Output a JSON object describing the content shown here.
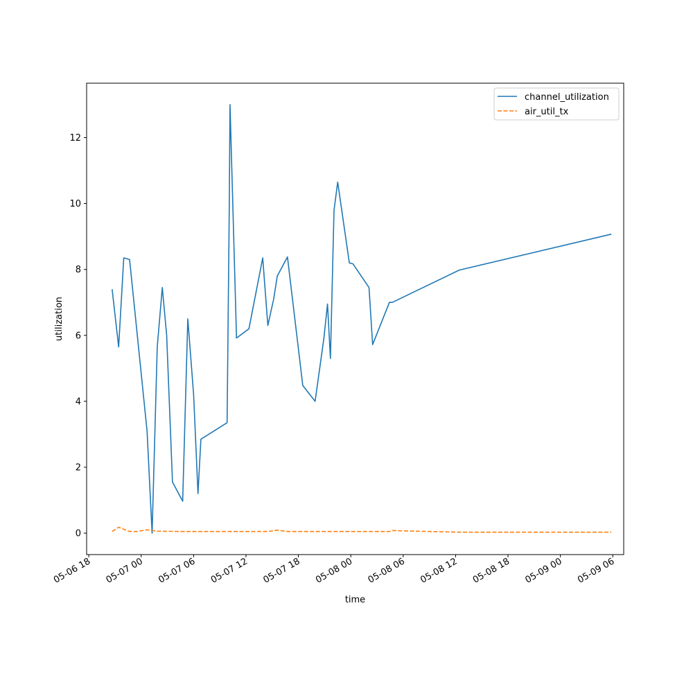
{
  "chart_data": {
    "type": "line",
    "title": "",
    "xlabel": "time",
    "ylabel": "utilization",
    "x_axis": {
      "kind": "datetime",
      "range": [
        "2022-05-06 17:45",
        "2022-05-09 07:15"
      ],
      "ticks": [
        {
          "at": "2022-05-06 18:00",
          "label": "05-06 18"
        },
        {
          "at": "2022-05-07 00:00",
          "label": "05-07 00"
        },
        {
          "at": "2022-05-07 06:00",
          "label": "05-07 06"
        },
        {
          "at": "2022-05-07 12:00",
          "label": "05-07 12"
        },
        {
          "at": "2022-05-07 18:00",
          "label": "05-07 18"
        },
        {
          "at": "2022-05-08 00:00",
          "label": "05-08 00"
        },
        {
          "at": "2022-05-08 06:00",
          "label": "05-08 06"
        },
        {
          "at": "2022-05-08 12:00",
          "label": "05-08 12"
        },
        {
          "at": "2022-05-08 18:00",
          "label": "05-08 18"
        },
        {
          "at": "2022-05-09 00:00",
          "label": "05-09 00"
        },
        {
          "at": "2022-05-09 06:00",
          "label": "05-09 06"
        }
      ]
    },
    "y_axis": {
      "range": [
        -0.65,
        13.65
      ],
      "ticks": [
        {
          "value": 0,
          "label": "0"
        },
        {
          "value": 2,
          "label": "2"
        },
        {
          "value": 4,
          "label": "4"
        },
        {
          "value": 6,
          "label": "6"
        },
        {
          "value": 8,
          "label": "8"
        },
        {
          "value": 10,
          "label": "10"
        },
        {
          "value": 12,
          "label": "12"
        }
      ]
    },
    "grid": false,
    "legend_position": "top-right",
    "series": [
      {
        "name": "channel_utilization",
        "color": "#1f77b4",
        "dash": "solid",
        "x": [
          "2022-05-06 20:40",
          "2022-05-06 21:25",
          "2022-05-06 22:00",
          "2022-05-06 22:40",
          "2022-05-07 00:40",
          "2022-05-07 01:15",
          "2022-05-07 01:50",
          "2022-05-07 02:25",
          "2022-05-07 02:55",
          "2022-05-07 03:35",
          "2022-05-07 04:45",
          "2022-05-07 05:20",
          "2022-05-07 06:00",
          "2022-05-07 06:30",
          "2022-05-07 06:50",
          "2022-05-07 09:50",
          "2022-05-07 10:05",
          "2022-05-07 10:10",
          "2022-05-07 10:55",
          "2022-05-07 12:20",
          "2022-05-07 13:55",
          "2022-05-07 14:30",
          "2022-05-07 15:10",
          "2022-05-07 15:35",
          "2022-05-07 16:45",
          "2022-05-07 18:30",
          "2022-05-07 19:55",
          "2022-05-07 20:55",
          "2022-05-07 21:20",
          "2022-05-07 21:40",
          "2022-05-07 22:05",
          "2022-05-07 22:30",
          "2022-05-07 23:50",
          "2022-05-08 00:15",
          "2022-05-08 02:05",
          "2022-05-08 02:30",
          "2022-05-08 04:25",
          "2022-05-08 04:45",
          "2022-05-08 12:25",
          "2022-05-09 05:50"
        ],
        "y": [
          7.4,
          5.65,
          8.35,
          8.3,
          3.1,
          0.0,
          5.65,
          7.45,
          6.0,
          1.55,
          0.97,
          6.5,
          4.2,
          1.2,
          2.85,
          3.35,
          9.8,
          13.0,
          5.92,
          6.2,
          8.35,
          6.3,
          7.1,
          7.8,
          8.38,
          4.48,
          4.0,
          5.9,
          6.95,
          5.3,
          9.8,
          10.65,
          8.2,
          8.17,
          7.45,
          5.72,
          7.0,
          7.0,
          7.98,
          9.07
        ]
      },
      {
        "name": "air_util_tx",
        "color": "#ff7f0e",
        "dash": "dashed",
        "x": [
          "2022-05-06 20:40",
          "2022-05-06 21:25",
          "2022-05-06 22:40",
          "2022-05-06 23:30",
          "2022-05-07 00:40",
          "2022-05-07 01:15",
          "2022-05-07 01:50",
          "2022-05-07 04:45",
          "2022-05-07 10:10",
          "2022-05-07 14:30",
          "2022-05-07 15:35",
          "2022-05-07 16:45",
          "2022-05-07 21:20",
          "2022-05-07 22:05",
          "2022-05-08 04:25",
          "2022-05-08 04:45",
          "2022-05-08 06:00",
          "2022-05-08 12:25",
          "2022-05-09 05:50"
        ],
        "y": [
          0.05,
          0.18,
          0.05,
          0.05,
          0.1,
          0.08,
          0.06,
          0.05,
          0.05,
          0.05,
          0.09,
          0.05,
          0.05,
          0.05,
          0.05,
          0.08,
          0.07,
          0.03,
          0.03
        ]
      }
    ]
  }
}
